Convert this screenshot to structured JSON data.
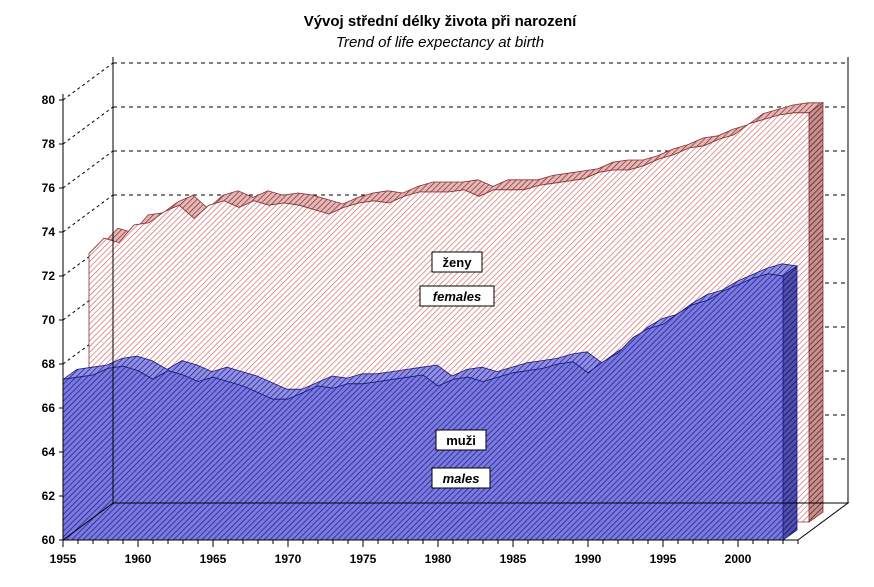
{
  "chart_data": {
    "type": "area",
    "title": "Vývoj střední délky života při narození",
    "subtitle": "Trend of life expectancy at birth",
    "xlabel": "",
    "ylabel": "",
    "ylim": [
      60,
      80
    ],
    "xlim": [
      1955,
      2004
    ],
    "yticks": [
      60,
      62,
      64,
      66,
      68,
      70,
      72,
      74,
      76,
      78,
      80
    ],
    "xticks": [
      1955,
      1960,
      1965,
      1970,
      1975,
      1980,
      1985,
      1990,
      1995,
      2000
    ],
    "grid": true,
    "x": [
      1955,
      1956,
      1957,
      1958,
      1959,
      1960,
      1961,
      1962,
      1963,
      1964,
      1965,
      1966,
      1967,
      1968,
      1969,
      1970,
      1971,
      1972,
      1973,
      1974,
      1975,
      1976,
      1977,
      1978,
      1979,
      1980,
      1981,
      1982,
      1983,
      1984,
      1985,
      1986,
      1987,
      1988,
      1989,
      1990,
      1991,
      1992,
      1993,
      1994,
      1995,
      1996,
      1997,
      1998,
      1999,
      2000,
      2001,
      2002,
      2003
    ],
    "series": [
      {
        "name": "females",
        "labels": [
          "ženy",
          "females"
        ],
        "color": "#d06060",
        "values": [
          72.2,
          72.9,
          72.7,
          73.5,
          73.6,
          74.1,
          74.4,
          73.8,
          74.4,
          74.6,
          74.3,
          74.6,
          74.4,
          74.5,
          74.4,
          74.2,
          74.0,
          74.3,
          74.5,
          74.6,
          74.5,
          74.8,
          75.0,
          75.0,
          75.0,
          75.1,
          74.8,
          75.1,
          75.1,
          75.1,
          75.3,
          75.4,
          75.5,
          75.6,
          75.9,
          76.0,
          76.0,
          76.2,
          76.5,
          76.7,
          77.0,
          77.1,
          77.4,
          77.6,
          78.1,
          78.3,
          78.5,
          78.6,
          78.6
        ]
      },
      {
        "name": "males",
        "labels": [
          "muži",
          "males"
        ],
        "color": "#5050c0",
        "values": [
          67.3,
          67.4,
          67.5,
          67.8,
          67.9,
          67.7,
          67.3,
          67.7,
          67.5,
          67.2,
          67.4,
          67.2,
          67.0,
          66.7,
          66.4,
          66.4,
          66.7,
          67.0,
          66.9,
          67.1,
          67.1,
          67.2,
          67.3,
          67.4,
          67.5,
          67.0,
          67.3,
          67.4,
          67.2,
          67.4,
          67.6,
          67.7,
          67.8,
          68.0,
          68.1,
          67.6,
          68.1,
          68.5,
          69.2,
          69.6,
          69.8,
          70.3,
          70.7,
          70.9,
          71.3,
          71.6,
          71.9,
          72.1,
          72.0
        ]
      }
    ]
  }
}
